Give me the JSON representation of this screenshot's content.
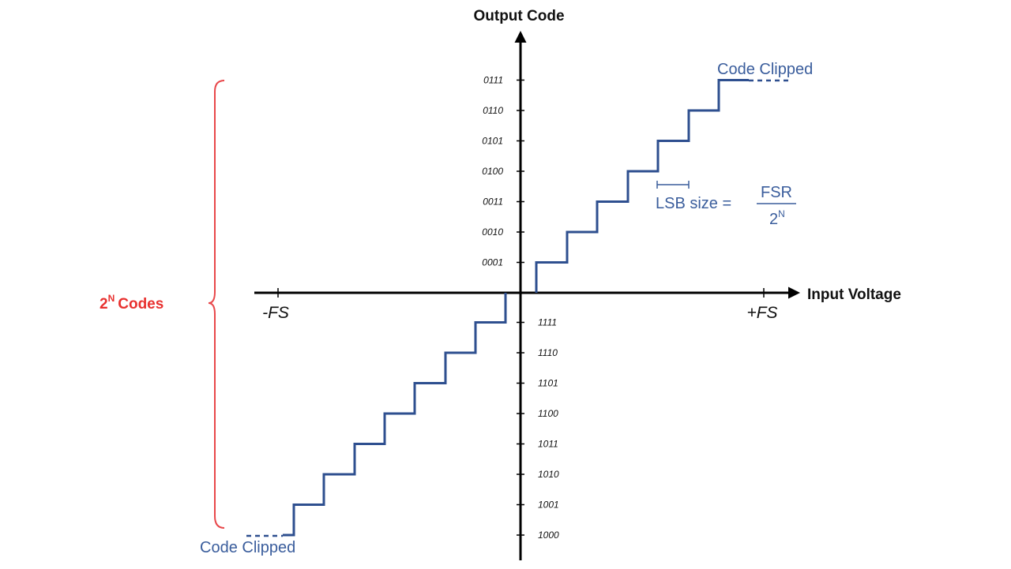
{
  "axes": {
    "y_title": "Output Code",
    "x_title": "Input Voltage",
    "x_neg_label": "-FS",
    "x_pos_label": "+FS"
  },
  "codes": {
    "positive": [
      "0001",
      "0010",
      "0011",
      "0100",
      "0101",
      "0110",
      "0111"
    ],
    "negative": [
      "1111",
      "1110",
      "1101",
      "1100",
      "1011",
      "1010",
      "1001",
      "1000"
    ]
  },
  "annotations": {
    "clipped_top": "Code Clipped",
    "clipped_bottom": "Code Clipped",
    "lsb_text": "LSB size =",
    "lsb_numerator": "FSR",
    "lsb_den_base": "2",
    "lsb_den_exp": "N",
    "codes_base": "2",
    "codes_exp": "N",
    "codes_text": "Codes"
  },
  "colors": {
    "staircase": "#2e4f8f",
    "annotation_blue": "#3a5d9c",
    "brace_red": "#e8474a",
    "codes_red": "#e8312f",
    "axis": "#000000"
  }
}
